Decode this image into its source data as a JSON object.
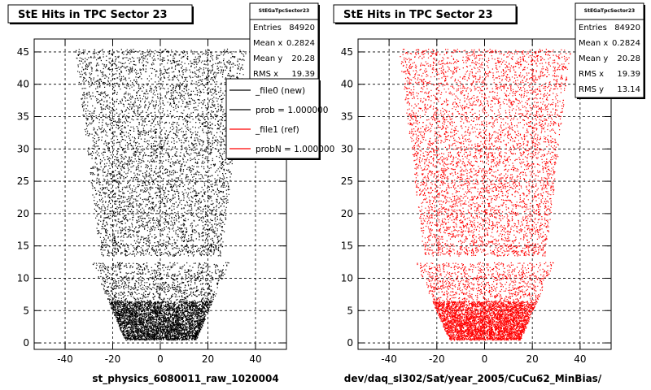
{
  "chart_data": [
    {
      "type": "scatter",
      "title": "StE Hits in TPC Sector 23",
      "xlabel": "st_physics_6080011_raw_1020004",
      "ylabel": "",
      "xlim": [
        -53,
        53
      ],
      "ylim": [
        -1,
        47
      ],
      "xticks": [
        -40,
        -20,
        0,
        20,
        40
      ],
      "yticks": [
        0,
        5,
        10,
        15,
        20,
        25,
        30,
        35,
        40,
        45
      ],
      "grid": true,
      "color": "#000000",
      "stats": {
        "title": "StEGaTpcSector23",
        "rows": [
          {
            "label": "Entries",
            "value": "84920"
          },
          {
            "label": "Mean x",
            "value": "0.2824"
          },
          {
            "label": "Mean y",
            "value": "20.28"
          },
          {
            "label": "RMS x",
            "value": "19.39"
          }
        ]
      },
      "legend": {
        "placement": "right",
        "entries": [
          {
            "label": "_file0 (new)",
            "color": "#000000"
          },
          {
            "label": "prob = 1.000000",
            "color": "#000000"
          },
          {
            "label": "_file1 (ref)",
            "color": "#ff0000"
          },
          {
            "label": "probN = 1.000000",
            "color": "#ff0000"
          }
        ]
      },
      "series": [
        {
          "name": "_file0 (new)",
          "shape": {
            "upper_rows": [
              [
                13.5,
                25.5
              ],
              [
                45.5,
                36
              ]
            ],
            "lower_rows": [
              [
                0.5,
                15
              ],
              [
                12.5,
                29
              ]
            ],
            "gap": [
              12.5,
              13.5
            ]
          }
        }
      ]
    },
    {
      "type": "scatter",
      "title": "StE Hits in TPC Sector 23",
      "xlabel": "dev/daq_sl302/Sat/year_2005/CuCu62_MinBias/",
      "ylabel": "",
      "xlim": [
        -53,
        53
      ],
      "ylim": [
        -1,
        47
      ],
      "xticks": [
        -40,
        -20,
        0,
        20,
        40
      ],
      "yticks": [
        0,
        5,
        10,
        15,
        20,
        25,
        30,
        35,
        40,
        45
      ],
      "grid": true,
      "color": "#ff0000",
      "stats": {
        "title": "StEGaTpcSector23",
        "rows": [
          {
            "label": "Entries",
            "value": "84920"
          },
          {
            "label": "Mean x",
            "value": "0.2824"
          },
          {
            "label": "Mean y",
            "value": "20.28"
          },
          {
            "label": "RMS x",
            "value": "19.39"
          },
          {
            "label": "RMS y",
            "value": "13.14"
          }
        ]
      },
      "series": [
        {
          "name": "_file1 (ref)",
          "shape": {
            "upper_rows": [
              [
                13.5,
                25.5
              ],
              [
                45.5,
                36
              ]
            ],
            "lower_rows": [
              [
                0.5,
                15
              ],
              [
                12.5,
                29
              ]
            ],
            "gap": [
              12.5,
              13.5
            ]
          }
        }
      ]
    }
  ]
}
